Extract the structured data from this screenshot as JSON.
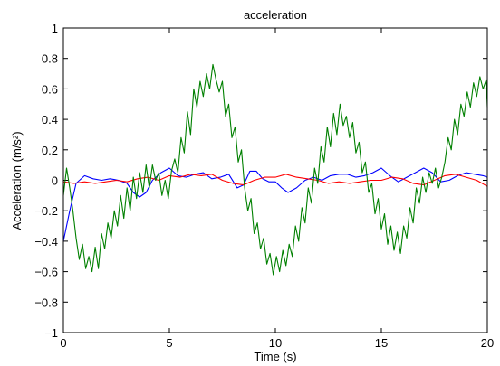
{
  "chart_data": {
    "type": "line",
    "title": "acceleration",
    "xlabel": "Time (s)",
    "ylabel": "Acceleration (m/s²)",
    "xlim": [
      0,
      20
    ],
    "ylim": [
      -1,
      1
    ],
    "xticks": [
      0,
      5,
      10,
      15,
      20
    ],
    "xtick_labels": [
      "0",
      "5",
      "10",
      "15",
      "20"
    ],
    "yticks": [
      -1,
      -0.8,
      -0.6,
      -0.4,
      -0.2,
      0,
      0.2,
      0.4,
      0.6,
      0.8,
      1
    ],
    "ytick_labels": [
      "−1",
      "−0.8",
      "−0.6",
      "−0.4",
      "−0.2",
      "0",
      "0.2",
      "0.4",
      "0.6",
      "0.8",
      "1"
    ],
    "grid": false,
    "legend": "none",
    "series": [
      {
        "color": "#0000ff",
        "x": [
          0,
          0.3,
          0.6,
          1,
          1.4,
          1.8,
          2.2,
          2.6,
          3,
          3.3,
          3.6,
          3.9,
          4.2,
          4.6,
          5,
          5.4,
          5.8,
          6.2,
          6.6,
          7,
          7.4,
          7.8,
          8.2,
          8.5,
          8.8,
          9.1,
          9.4,
          9.7,
          10,
          10.3,
          10.6,
          11,
          11.4,
          11.8,
          12.2,
          12.6,
          13,
          13.4,
          13.8,
          14.2,
          14.6,
          15,
          15.4,
          15.8,
          16.2,
          16.6,
          17,
          17.4,
          17.8,
          18.2,
          18.6,
          19,
          19.4,
          19.8,
          20
        ],
        "y": [
          -0.4,
          -0.2,
          -0.02,
          0.03,
          0.01,
          0,
          0.01,
          0,
          -0.02,
          -0.08,
          -0.11,
          -0.08,
          0.0,
          0.05,
          0.08,
          0.03,
          0.02,
          0.04,
          0.05,
          0.01,
          0.02,
          0.04,
          -0.05,
          -0.03,
          0.06,
          0.06,
          0.01,
          -0.01,
          -0.01,
          -0.05,
          -0.08,
          -0.05,
          0.0,
          0.02,
          0.0,
          0.03,
          0.04,
          0.04,
          0.02,
          0.03,
          0.05,
          0.08,
          0.03,
          -0.01,
          0.02,
          0.05,
          0.08,
          0.05,
          -0.01,
          0.0,
          0.03,
          0.05,
          0.04,
          0.03,
          0.02
        ]
      },
      {
        "color": "#ff0000",
        "x": [
          0,
          0.5,
          1,
          1.5,
          2,
          2.5,
          3,
          3.5,
          4,
          4.5,
          5,
          5.5,
          6,
          6.5,
          7,
          7.5,
          8,
          8.5,
          9,
          9.5,
          10,
          10.5,
          11,
          11.5,
          12,
          12.5,
          13,
          13.5,
          14,
          14.5,
          15,
          15.5,
          16,
          16.5,
          17,
          17.5,
          18,
          18.5,
          19,
          19.5,
          20
        ],
        "y": [
          -0.01,
          -0.02,
          -0.01,
          -0.02,
          -0.01,
          0.0,
          -0.01,
          0.01,
          0.02,
          0.0,
          0.03,
          0.02,
          0.04,
          0.03,
          0.04,
          0.0,
          -0.02,
          -0.03,
          0.0,
          0.02,
          0.02,
          0.04,
          0.02,
          0.01,
          0.0,
          -0.02,
          -0.01,
          -0.02,
          -0.01,
          0.0,
          0.0,
          0.02,
          0.01,
          -0.02,
          -0.03,
          0.0,
          0.03,
          0.04,
          0.02,
          0.0,
          -0.04
        ]
      },
      {
        "color": "#008000",
        "x": [
          0,
          0.15,
          0.3,
          0.45,
          0.6,
          0.75,
          0.9,
          1.05,
          1.2,
          1.35,
          1.5,
          1.65,
          1.8,
          1.95,
          2.1,
          2.25,
          2.4,
          2.55,
          2.7,
          2.85,
          3,
          3.15,
          3.3,
          3.45,
          3.6,
          3.75,
          3.9,
          4.05,
          4.2,
          4.35,
          4.5,
          4.65,
          4.8,
          4.95,
          5.1,
          5.25,
          5.4,
          5.55,
          5.7,
          5.85,
          6,
          6.15,
          6.3,
          6.45,
          6.6,
          6.75,
          6.9,
          7.05,
          7.2,
          7.35,
          7.5,
          7.65,
          7.8,
          7.95,
          8.1,
          8.25,
          8.4,
          8.55,
          8.7,
          8.85,
          9,
          9.15,
          9.3,
          9.45,
          9.6,
          9.75,
          9.9,
          10.05,
          10.2,
          10.35,
          10.5,
          10.65,
          10.8,
          10.95,
          11.1,
          11.25,
          11.4,
          11.55,
          11.7,
          11.85,
          12,
          12.15,
          12.3,
          12.45,
          12.6,
          12.75,
          12.9,
          13.05,
          13.2,
          13.35,
          13.5,
          13.65,
          13.8,
          13.95,
          14.1,
          14.25,
          14.4,
          14.55,
          14.7,
          14.85,
          15,
          15.15,
          15.3,
          15.45,
          15.6,
          15.75,
          15.9,
          16.05,
          16.2,
          16.35,
          16.5,
          16.65,
          16.8,
          16.95,
          17.1,
          17.25,
          17.4,
          17.55,
          17.7,
          17.85,
          18,
          18.15,
          18.3,
          18.45,
          18.6,
          18.75,
          18.9,
          19.05,
          19.2,
          19.35,
          19.5,
          19.65,
          19.8,
          19.95,
          20
        ],
        "y": [
          -0.1,
          0.08,
          -0.05,
          -0.2,
          -0.38,
          -0.52,
          -0.42,
          -0.58,
          -0.5,
          -0.6,
          -0.44,
          -0.58,
          -0.35,
          -0.45,
          -0.28,
          -0.38,
          -0.2,
          -0.3,
          -0.1,
          -0.25,
          -0.05,
          -0.2,
          0.02,
          -0.12,
          0.05,
          -0.08,
          0.1,
          -0.05,
          0.1,
          0.0,
          0.05,
          -0.1,
          0.0,
          -0.12,
          0.06,
          0.14,
          0.05,
          0.28,
          0.18,
          0.45,
          0.3,
          0.6,
          0.48,
          0.65,
          0.55,
          0.7,
          0.6,
          0.76,
          0.66,
          0.58,
          0.65,
          0.42,
          0.5,
          0.28,
          0.35,
          0.12,
          0.2,
          -0.05,
          -0.2,
          -0.12,
          -0.35,
          -0.28,
          -0.45,
          -0.38,
          -0.55,
          -0.48,
          -0.62,
          -0.5,
          -0.6,
          -0.46,
          -0.56,
          -0.42,
          -0.5,
          -0.3,
          -0.4,
          -0.18,
          -0.28,
          -0.05,
          -0.15,
          0.08,
          -0.02,
          0.22,
          0.12,
          0.35,
          0.22,
          0.44,
          0.3,
          0.5,
          0.36,
          0.42,
          0.28,
          0.38,
          0.18,
          0.25,
          0.05,
          0.12,
          -0.08,
          -0.02,
          -0.22,
          -0.12,
          -0.32,
          -0.22,
          -0.42,
          -0.3,
          -0.46,
          -0.34,
          -0.48,
          -0.3,
          -0.38,
          -0.18,
          -0.28,
          -0.05,
          -0.15,
          0.02,
          -0.08,
          0.05,
          -0.02,
          0.08,
          -0.05,
          0.02,
          0.12,
          0.28,
          0.2,
          0.4,
          0.3,
          0.5,
          0.42,
          0.58,
          0.48,
          0.64,
          0.55,
          0.68,
          0.6,
          0.66,
          0.48
        ]
      }
    ]
  }
}
